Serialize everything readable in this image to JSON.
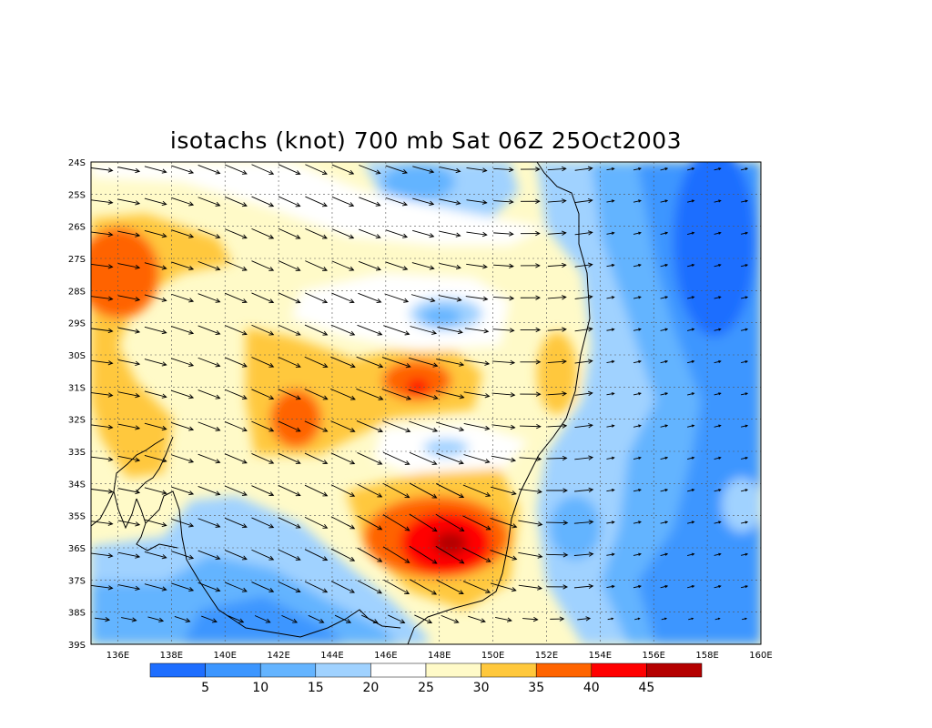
{
  "title": "isotachs (knot) 700 mb Sat 06Z 25Oct2003",
  "map": {
    "lon_range": [
      135,
      160
    ],
    "lat_range": [
      -39,
      -24
    ],
    "lon_ticks": [
      "136E",
      "138E",
      "140E",
      "142E",
      "144E",
      "146E",
      "148E",
      "150E",
      "152E",
      "154E",
      "156E",
      "158E",
      "160E"
    ],
    "lat_ticks": [
      "24S",
      "25S",
      "26S",
      "27S",
      "28S",
      "29S",
      "30S",
      "31S",
      "32S",
      "33S",
      "34S",
      "35S",
      "36S",
      "37S",
      "38S",
      "39S"
    ],
    "grid": "dotted",
    "field": "isotachs (knot) 700 mb",
    "features": {
      "jet_max_south": {
        "lon": 148.5,
        "lat": -35.9,
        "speed_class": ">45"
      },
      "max_central": {
        "lon": 147.0,
        "lat": -31.0,
        "speed_class": "40-45"
      },
      "max_west": {
        "lon": 137.0,
        "lat": -27.5,
        "speed_class": "35-40"
      },
      "min_east": {
        "lon": 159.0,
        "lat": -26.5,
        "speed_class": "<5"
      }
    }
  },
  "colorbar": {
    "colors": [
      "#1e6eff",
      "#3c96ff",
      "#64b4ff",
      "#a0d2ff",
      "#ffffff",
      "#fffac8",
      "#ffc83c",
      "#ff6400",
      "#ff0000",
      "#b40000"
    ],
    "labels": [
      "5",
      "10",
      "15",
      "20",
      "25",
      "30",
      "35",
      "40",
      "45"
    ]
  }
}
